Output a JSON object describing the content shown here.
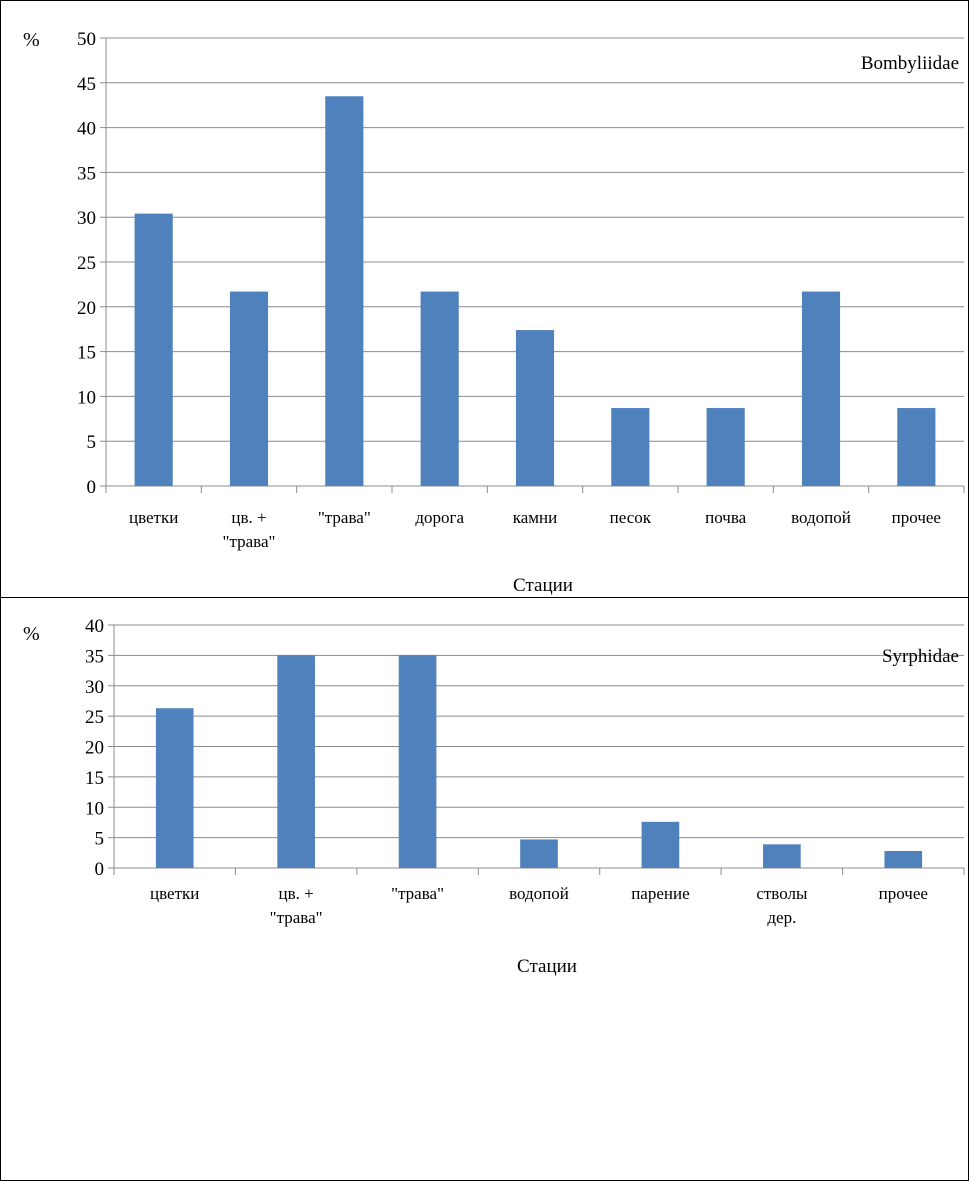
{
  "chart_data": [
    {
      "type": "bar",
      "title": "Bombyliidae",
      "unit_label": "%",
      "xlabel": "Стации",
      "ylabel": "%",
      "ylim": [
        0,
        50
      ],
      "yticks": [
        0,
        5,
        10,
        15,
        20,
        25,
        30,
        35,
        40,
        45,
        50
      ],
      "grid": true,
      "bar_color": "#4f81bd",
      "categories": [
        "цветки",
        "цв. +\n\"трава\"",
        "\"трава\"",
        "дорога",
        "камни",
        "песок",
        "почва",
        "водопой",
        "прочее"
      ],
      "values": [
        30.4,
        21.7,
        43.5,
        21.7,
        17.4,
        8.7,
        8.7,
        21.7,
        8.7
      ]
    },
    {
      "type": "bar",
      "title": "Syrphidae",
      "unit_label": "%",
      "xlabel": "Стации",
      "ylabel": "%",
      "ylim": [
        0,
        40
      ],
      "yticks": [
        0,
        5,
        10,
        15,
        20,
        25,
        30,
        35,
        40
      ],
      "grid": true,
      "bar_color": "#4f81bd",
      "categories": [
        "цветки",
        "цв. +\n\"трава\"",
        "\"трава\"",
        "водопой",
        "парение",
        "стволы\nдер.",
        "прочее"
      ],
      "values": [
        26.3,
        35.0,
        35.0,
        4.7,
        7.6,
        3.9,
        2.8
      ]
    }
  ]
}
